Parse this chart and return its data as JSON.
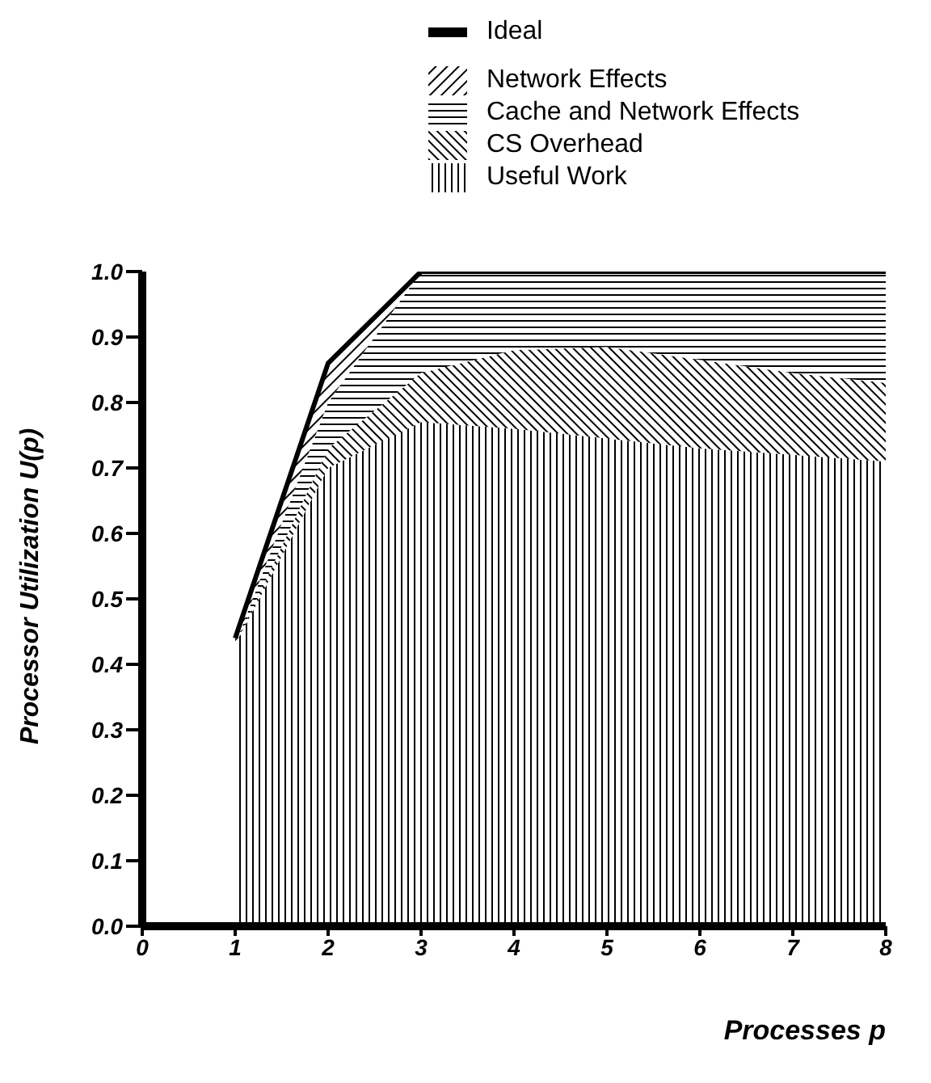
{
  "chart_data": {
    "type": "area",
    "stacked": true,
    "xlabel": "Processes p",
    "ylabel": "Processor Utilization U(p)",
    "x": [
      1,
      2,
      3,
      4,
      5,
      6,
      7,
      8
    ],
    "series": [
      {
        "name": "Useful Work",
        "color": "#000000",
        "values": [
          0.43,
          0.7,
          0.77,
          0.76,
          0.745,
          0.73,
          0.72,
          0.71
        ]
      },
      {
        "name": "CS Overhead",
        "color": "#000000",
        "values": [
          0.0,
          0.03,
          0.075,
          0.12,
          0.14,
          0.135,
          0.125,
          0.12
        ]
      },
      {
        "name": "Cache and Network Effects",
        "color": "#000000",
        "values": [
          0.0,
          0.07,
          0.155,
          0.12,
          0.115,
          0.135,
          0.155,
          0.17
        ]
      },
      {
        "name": "Network Effects",
        "color": "#000000",
        "values": [
          0.01,
          0.06,
          0.0,
          null,
          null,
          null,
          null,
          null
        ]
      },
      {
        "name": "Ideal",
        "type": "line",
        "color": "#000000",
        "values": [
          0.44,
          0.86,
          1.0,
          1.0,
          1.0,
          1.0,
          1.0,
          1.0
        ]
      }
    ],
    "xlim": [
      0,
      8
    ],
    "xticks": [
      0,
      1,
      2,
      3,
      4,
      5,
      6,
      7,
      8
    ],
    "ylim": [
      0,
      1
    ],
    "yticks": [
      {
        "value": 0,
        "label": "0.0"
      },
      {
        "value": 0.1,
        "label": "0.1"
      },
      {
        "value": 0.2,
        "label": "0.2"
      },
      {
        "value": 0.3,
        "label": "0.3"
      },
      {
        "value": 0.4,
        "label": "0.4"
      },
      {
        "value": 0.5,
        "label": "0.5"
      },
      {
        "value": 0.6,
        "label": "0.6"
      },
      {
        "value": 0.7,
        "label": "0.7"
      },
      {
        "value": 0.8,
        "label": "0.8"
      },
      {
        "value": 0.9,
        "label": "0.9"
      },
      {
        "value": 1,
        "label": "1.0"
      }
    ],
    "legend": "top right"
  }
}
